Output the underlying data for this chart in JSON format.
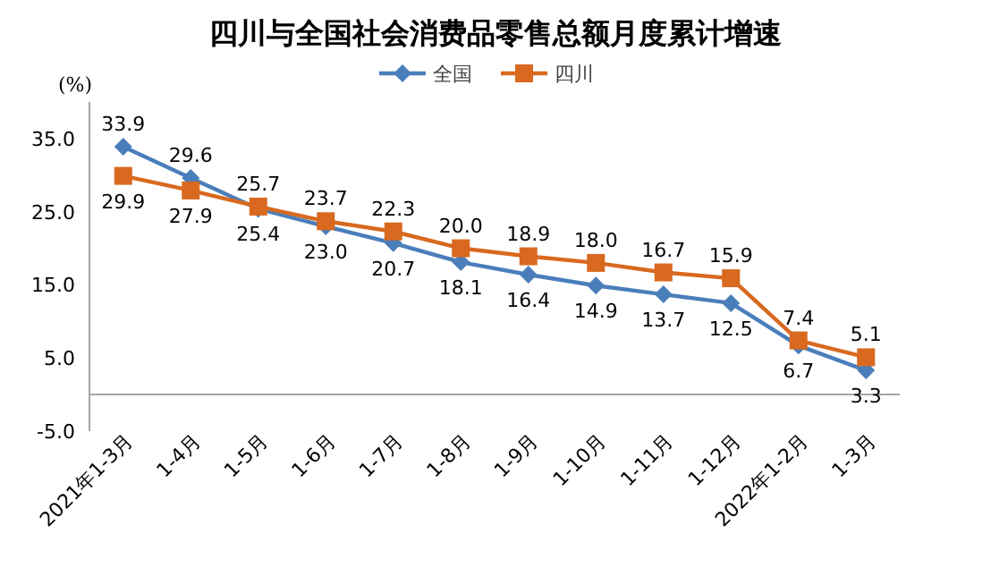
{
  "chart_data": {
    "type": "line",
    "title": "四川与全国社会消费品零售总额月度累计增速",
    "ylabel": "(%)",
    "categories": [
      "2021年1-3月",
      "1-4月",
      "1-5月",
      "1-6月",
      "1-7月",
      "1-8月",
      "1-9月",
      "1-10月",
      "1-11月",
      "1-12月",
      "2022年1-2月",
      "1-3月"
    ],
    "series": [
      {
        "name": "全国",
        "color": "#4a7ebb",
        "marker": "diamond",
        "values": [
          33.9,
          29.6,
          25.4,
          23.0,
          20.7,
          18.1,
          16.4,
          14.9,
          13.7,
          12.5,
          6.7,
          3.3
        ],
        "value_labels": [
          "33.9",
          "29.6",
          "25.4",
          "23.0",
          "20.7",
          "18.1",
          "16.4",
          "14.9",
          "13.7",
          "12.5",
          "6.7",
          "3.3"
        ]
      },
      {
        "name": "四川",
        "color": "#d8691f",
        "marker": "square",
        "values": [
          29.9,
          27.9,
          25.7,
          23.7,
          22.3,
          20.0,
          18.9,
          18.0,
          16.7,
          15.9,
          7.4,
          5.1
        ],
        "value_labels": [
          "29.9",
          "27.9",
          "25.7",
          "23.7",
          "22.3",
          "20.0",
          "18.9",
          "18.0",
          "16.7",
          "15.9",
          "7.4",
          "5.1"
        ]
      }
    ],
    "ylim": [
      -5,
      40
    ],
    "yticks": [
      {
        "value": -5,
        "label": "-5.0"
      },
      {
        "value": 5,
        "label": "5.0"
      },
      {
        "value": 15,
        "label": "15.0"
      },
      {
        "value": 25,
        "label": "25.0"
      },
      {
        "value": 35,
        "label": "35.0"
      }
    ],
    "legend": "top",
    "grid": false
  }
}
